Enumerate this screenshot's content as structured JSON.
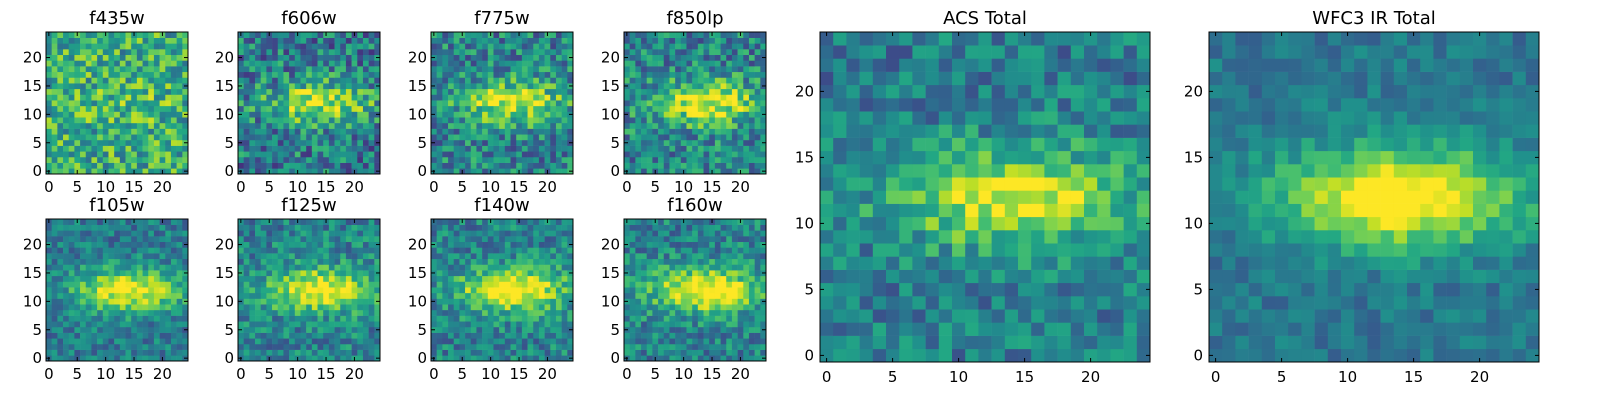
{
  "chart_data": [
    {
      "type": "heatmap",
      "title": "f435w",
      "xticks": [
        0,
        5,
        10,
        15,
        20
      ],
      "yticks": [
        0,
        5,
        10,
        15,
        20
      ],
      "xlim": [
        -0.5,
        24.5
      ],
      "ylim": [
        -0.5,
        24.5
      ],
      "grid": false,
      "colormap": "viridis",
      "pattern": {
        "seed": 435,
        "noise": 0.55,
        "base": 0.62,
        "blob": 0.08
      }
    },
    {
      "type": "heatmap",
      "title": "f606w",
      "xticks": [
        0,
        5,
        10,
        15,
        20
      ],
      "yticks": [
        0,
        5,
        10,
        15,
        20
      ],
      "xlim": [
        -0.5,
        24.5
      ],
      "ylim": [
        -0.5,
        24.5
      ],
      "grid": false,
      "colormap": "viridis",
      "pattern": {
        "seed": 606,
        "noise": 0.55,
        "base": 0.42,
        "blob": 0.5
      }
    },
    {
      "type": "heatmap",
      "title": "f775w",
      "xticks": [
        0,
        5,
        10,
        15,
        20
      ],
      "yticks": [
        0,
        5,
        10,
        15,
        20
      ],
      "xlim": [
        -0.5,
        24.5
      ],
      "ylim": [
        -0.5,
        24.5
      ],
      "grid": false,
      "colormap": "viridis",
      "pattern": {
        "seed": 775,
        "noise": 0.5,
        "base": 0.45,
        "blob": 0.5
      }
    },
    {
      "type": "heatmap",
      "title": "f850lp",
      "xticks": [
        0,
        5,
        10,
        15,
        20
      ],
      "yticks": [
        0,
        5,
        10,
        15,
        20
      ],
      "xlim": [
        -0.5,
        24.5
      ],
      "ylim": [
        -0.5,
        24.5
      ],
      "grid": false,
      "colormap": "viridis",
      "pattern": {
        "seed": 850,
        "noise": 0.5,
        "base": 0.45,
        "blob": 0.55
      }
    },
    {
      "type": "heatmap",
      "title": "f105w",
      "xticks": [
        0,
        5,
        10,
        15,
        20
      ],
      "yticks": [
        0,
        5,
        10,
        15,
        20
      ],
      "xlim": [
        -0.5,
        24.5
      ],
      "ylim": [
        -0.5,
        24.5
      ],
      "grid": false,
      "colormap": "viridis",
      "pattern": {
        "seed": 105,
        "noise": 0.35,
        "base": 0.42,
        "blob": 0.6
      }
    },
    {
      "type": "heatmap",
      "title": "f125w",
      "xticks": [
        0,
        5,
        10,
        15,
        20
      ],
      "yticks": [
        0,
        5,
        10,
        15,
        20
      ],
      "xlim": [
        -0.5,
        24.5
      ],
      "ylim": [
        -0.5,
        24.5
      ],
      "grid": false,
      "colormap": "viridis",
      "pattern": {
        "seed": 125,
        "noise": 0.4,
        "base": 0.45,
        "blob": 0.6
      }
    },
    {
      "type": "heatmap",
      "title": "f140w",
      "xticks": [
        0,
        5,
        10,
        15,
        20
      ],
      "yticks": [
        0,
        5,
        10,
        15,
        20
      ],
      "xlim": [
        -0.5,
        24.5
      ],
      "ylim": [
        -0.5,
        24.5
      ],
      "grid": false,
      "colormap": "viridis",
      "pattern": {
        "seed": 140,
        "noise": 0.4,
        "base": 0.45,
        "blob": 0.65
      }
    },
    {
      "type": "heatmap",
      "title": "f160w",
      "xticks": [
        0,
        5,
        10,
        15,
        20
      ],
      "yticks": [
        0,
        5,
        10,
        15,
        20
      ],
      "xlim": [
        -0.5,
        24.5
      ],
      "ylim": [
        -0.5,
        24.5
      ],
      "grid": false,
      "colormap": "viridis",
      "pattern": {
        "seed": 160,
        "noise": 0.4,
        "base": 0.45,
        "blob": 0.65
      }
    },
    {
      "type": "heatmap",
      "title": "ACS Total",
      "xticks": [
        0,
        5,
        10,
        15,
        20
      ],
      "yticks": [
        0,
        5,
        10,
        15,
        20
      ],
      "xlim": [
        -0.5,
        24.5
      ],
      "ylim": [
        -0.5,
        24.5
      ],
      "grid": false,
      "colormap": "viridis",
      "pattern": {
        "seed": 999,
        "noise": 0.38,
        "base": 0.42,
        "blob": 0.55
      }
    },
    {
      "type": "heatmap",
      "title": "WFC3 IR Total",
      "xticks": [
        0,
        5,
        10,
        15,
        20
      ],
      "yticks": [
        0,
        5,
        10,
        15,
        20
      ],
      "xlim": [
        -0.5,
        24.5
      ],
      "ylim": [
        -0.5,
        24.5
      ],
      "grid": false,
      "colormap": "viridis",
      "pattern": {
        "seed": 321,
        "noise": 0.22,
        "base": 0.4,
        "blob": 0.7
      }
    }
  ]
}
